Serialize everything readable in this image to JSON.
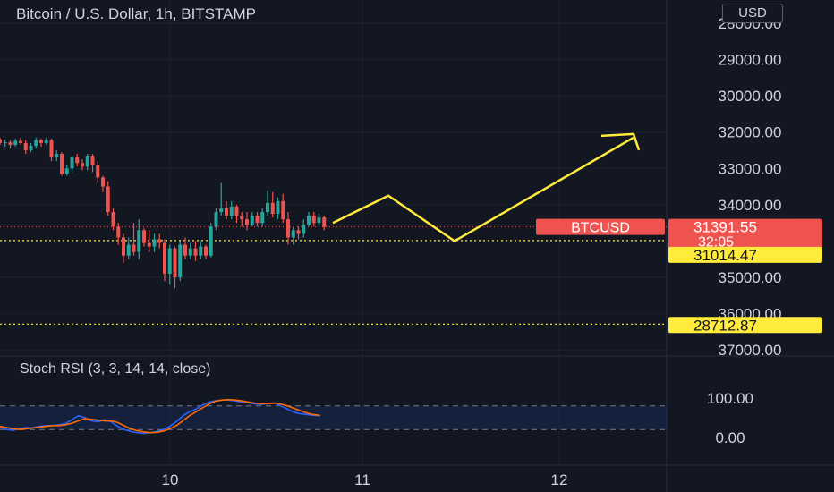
{
  "header": {
    "title": "Bitcoin / U.S. Dollar, 1h, BITSTAMP",
    "currency_button": "USD"
  },
  "indicator": {
    "title": "Stoch RSI (3, 3, 14, 14, close)",
    "scale_labels": [
      "100.00",
      "0.00"
    ]
  },
  "price_scale": {
    "labels": [
      "37000.00",
      "36000.00",
      "35000.00",
      "34000.00",
      "33000.00",
      "32000.00",
      "30000.00",
      "29000.00",
      "28000.00"
    ]
  },
  "time_scale": {
    "labels": [
      "10",
      "11",
      "12"
    ]
  },
  "price_tags": {
    "symbol": "BTCUSD",
    "last_price": "31391.55",
    "countdown": "32:05",
    "levels": [
      "31014.47",
      "28712.87"
    ]
  },
  "colors": {
    "background": "#131722",
    "up": "#26a69a",
    "down": "#ef5350",
    "projection": "#ffeb3b",
    "k_line": "#2962ff",
    "d_line": "#ff6d00"
  },
  "chart_data": {
    "type": "candlestick",
    "title": "Bitcoin / U.S. Dollar, 1h, BITSTAMP",
    "ylim": [
      27600,
      37300
    ],
    "y_ticks": [
      28000,
      29000,
      30000,
      32000,
      33000,
      34000,
      35000,
      36000,
      37000
    ],
    "x_ticks": [
      "10",
      "11",
      "12"
    ],
    "candles": [
      [
        33800,
        33700,
        33850,
        33650
      ],
      [
        33700,
        33720,
        33800,
        33600
      ],
      [
        33720,
        33650,
        33780,
        33550
      ],
      [
        33650,
        33760,
        33820,
        33600
      ],
      [
        33760,
        33700,
        33850,
        33650
      ],
      [
        33700,
        33500,
        33780,
        33400
      ],
      [
        33500,
        33620,
        33700,
        33450
      ],
      [
        33620,
        33780,
        33850,
        33550
      ],
      [
        33780,
        33700,
        33820,
        33600
      ],
      [
        33700,
        33780,
        33850,
        33650
      ],
      [
        33780,
        33300,
        33820,
        33200
      ],
      [
        33300,
        33400,
        33500,
        33200
      ],
      [
        33400,
        32850,
        33450,
        32800
      ],
      [
        32850,
        33000,
        33100,
        32800
      ],
      [
        33000,
        33300,
        33350,
        32900
      ],
      [
        33300,
        33150,
        33400,
        33050
      ],
      [
        33150,
        33050,
        33250,
        32950
      ],
      [
        33050,
        33350,
        33400,
        32950
      ],
      [
        33350,
        33100,
        33400,
        32900
      ],
      [
        33100,
        32750,
        33200,
        32600
      ],
      [
        32750,
        32500,
        32800,
        32350
      ],
      [
        32500,
        31800,
        32650,
        31700
      ],
      [
        31800,
        31400,
        31900,
        31300
      ],
      [
        31400,
        31100,
        31500,
        30900
      ],
      [
        31100,
        30600,
        31200,
        30400
      ],
      [
        30600,
        30900,
        31100,
        30500
      ],
      [
        30900,
        30700,
        31500,
        30600
      ],
      [
        30700,
        31300,
        31600,
        30500
      ],
      [
        31300,
        30950,
        31350,
        30850
      ],
      [
        30950,
        30850,
        31300,
        30700
      ],
      [
        30850,
        31050,
        31200,
        30700
      ],
      [
        31050,
        30950,
        31200,
        30800
      ],
      [
        30950,
        30100,
        31050,
        29900
      ],
      [
        30100,
        30800,
        30900,
        29800
      ],
      [
        30800,
        30000,
        30850,
        29700
      ],
      [
        30000,
        30900,
        31000,
        29900
      ],
      [
        30900,
        30600,
        31100,
        30500
      ],
      [
        30600,
        30800,
        30950,
        30500
      ],
      [
        30800,
        30600,
        31000,
        30450
      ],
      [
        30600,
        30850,
        31000,
        30500
      ],
      [
        30850,
        30600,
        30900,
        30500
      ],
      [
        30600,
        31400,
        31500,
        30550
      ],
      [
        31400,
        31800,
        31900,
        31300
      ],
      [
        31800,
        31900,
        32600,
        31700
      ],
      [
        31900,
        31700,
        32100,
        31600
      ],
      [
        31700,
        31950,
        32100,
        31600
      ],
      [
        31950,
        31700,
        32000,
        31500
      ],
      [
        31700,
        31600,
        31800,
        31400
      ],
      [
        31600,
        31450,
        31800,
        31300
      ],
      [
        31450,
        31700,
        31800,
        31400
      ],
      [
        31700,
        31500,
        31800,
        31400
      ],
      [
        31500,
        31800,
        31900,
        31400
      ],
      [
        31800,
        32050,
        32400,
        31700
      ],
      [
        32050,
        31750,
        32350,
        31650
      ],
      [
        31750,
        32100,
        32200,
        31600
      ],
      [
        32100,
        31600,
        32300,
        31500
      ],
      [
        31600,
        31100,
        31800,
        30900
      ],
      [
        31100,
        31300,
        31400,
        30900
      ],
      [
        31300,
        31200,
        31400,
        31050
      ],
      [
        31200,
        31450,
        31600,
        31100
      ],
      [
        31450,
        31700,
        31800,
        31400
      ],
      [
        31700,
        31500,
        31800,
        31400
      ],
      [
        31500,
        31650,
        31750,
        31400
      ],
      [
        31650,
        31390,
        31700,
        31300
      ]
    ],
    "projection_path": [
      [
        31500,
        0
      ],
      [
        32250,
        1
      ],
      [
        31000,
        2
      ],
      [
        33850,
        3
      ]
    ],
    "horizontal_levels": [
      {
        "label": "31014.47",
        "value": 31014.47
      },
      {
        "label": "28712.87",
        "value": 28712.87
      }
    ],
    "last_price": 31391.55,
    "stoch_rsi": {
      "range": [
        0,
        100
      ],
      "upper_band": 80,
      "lower_band": 20,
      "k": [
        25,
        20,
        18,
        22,
        25,
        24,
        28,
        30,
        30,
        32,
        35,
        45,
        55,
        50,
        42,
        40,
        45,
        40,
        28,
        20,
        15,
        12,
        10,
        12,
        15,
        20,
        28,
        40,
        55,
        65,
        72,
        82,
        90,
        93,
        95,
        95,
        93,
        90,
        88,
        85,
        84,
        86,
        88,
        80,
        72,
        64,
        60,
        58,
        56,
        55
      ],
      "d": [
        28,
        25,
        22,
        20,
        22,
        24,
        26,
        28,
        30,
        30,
        32,
        36,
        42,
        48,
        46,
        44,
        42,
        42,
        38,
        30,
        22,
        17,
        14,
        12,
        13,
        16,
        22,
        30,
        42,
        55,
        65,
        75,
        85,
        92,
        95,
        96,
        95,
        93,
        90,
        87,
        86,
        86,
        87,
        85,
        80,
        74,
        68,
        62,
        58,
        56
      ]
    }
  }
}
